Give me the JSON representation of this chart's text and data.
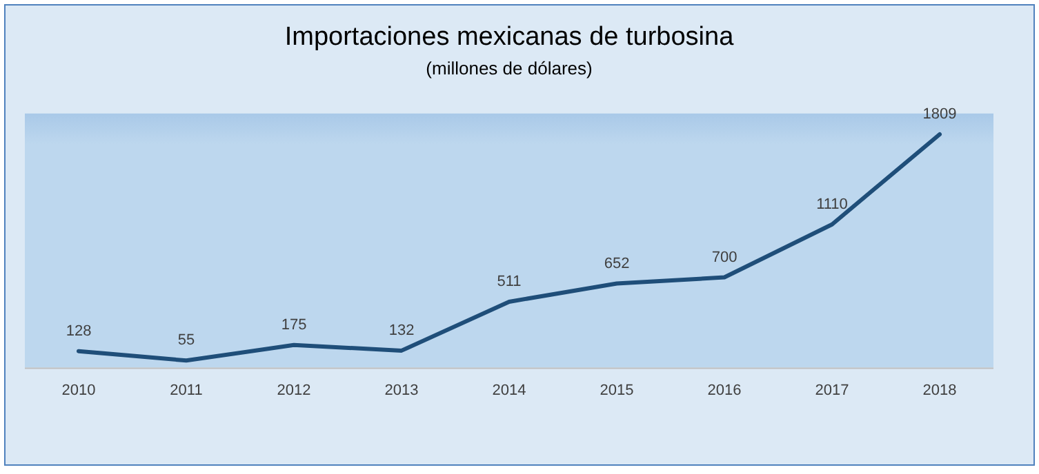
{
  "chart_data": {
    "type": "line",
    "title": "Importaciones mexicanas de turbosina",
    "subtitle": "(millones de dólares)",
    "categories": [
      "2010",
      "2011",
      "2012",
      "2013",
      "2014",
      "2015",
      "2016",
      "2017",
      "2018"
    ],
    "series": [
      {
        "color": "#1f4e79",
        "values": [
          128,
          55,
          175,
          132,
          511,
          652,
          700,
          1110,
          1809
        ]
      }
    ],
    "ylim": [
      0,
      1970
    ],
    "tick_labels": "x",
    "grid": false,
    "legend": false,
    "marker": "none",
    "line_style": "solid",
    "data_labels": true
  }
}
